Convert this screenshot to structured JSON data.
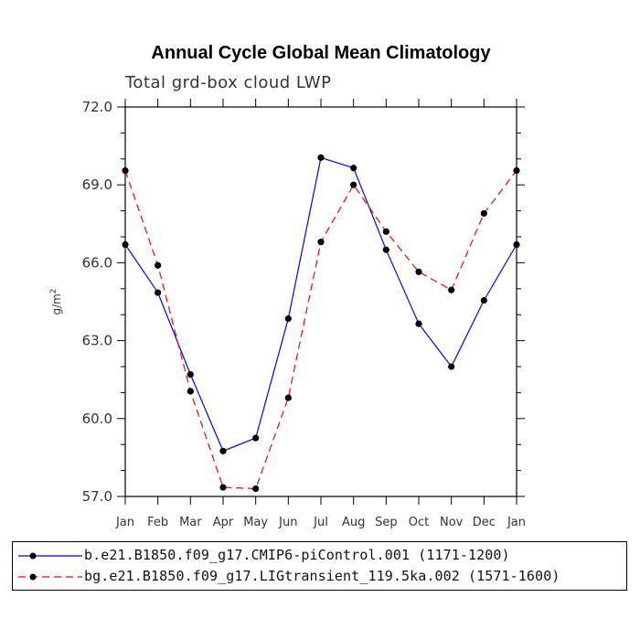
{
  "chart_data": {
    "type": "line",
    "title": "Annual Cycle Global Mean Climatology",
    "subtitle": "Total grd-box cloud LWP",
    "ylabel": "g/m",
    "ylabel_sup": "2",
    "categories": [
      "Jan",
      "Feb",
      "Mar",
      "Apr",
      "May",
      "Jun",
      "Jul",
      "Aug",
      "Sep",
      "Oct",
      "Nov",
      "Dec",
      "Jan"
    ],
    "ylim": [
      57.0,
      72.0
    ],
    "yticks": [
      "57.0",
      "60.0",
      "63.0",
      "66.0",
      "69.0",
      "72.0"
    ],
    "grid": false,
    "legend_position": "bottom",
    "series": [
      {
        "name": "b.e21.B1850.f09_g17.CMIP6-piControl.001 (1171-1200)",
        "color": "#0000ff",
        "style": "solid",
        "values": [
          66.7,
          64.85,
          61.7,
          58.75,
          59.25,
          63.85,
          70.05,
          69.65,
          66.5,
          63.65,
          62.0,
          64.55,
          66.7
        ]
      },
      {
        "name": "bg.e21.B1850.f09_g17.LIGtransient_119.5ka.002 (1571-1600)",
        "color": "#ff0000",
        "style": "dashed",
        "values": [
          69.55,
          65.9,
          61.05,
          57.35,
          57.3,
          60.8,
          66.8,
          69.0,
          67.2,
          65.65,
          64.95,
          67.9,
          69.55
        ]
      }
    ]
  }
}
